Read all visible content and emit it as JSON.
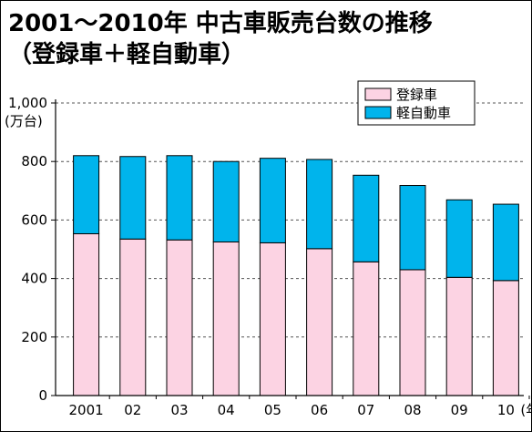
{
  "title_line1": "2001～2010年 中古車販売台数の推移",
  "title_line2": "（登録車＋軽自動車）",
  "colors": {
    "registered": "#fcd3e3",
    "kei": "#00b4ec",
    "grid": "#555555",
    "outline": "#000000"
  },
  "chart_data": {
    "type": "bar",
    "stacked": true,
    "categories": [
      "2001",
      "02",
      "03",
      "04",
      "05",
      "06",
      "07",
      "08",
      "09",
      "10"
    ],
    "x_unit": "(年)",
    "y_unit": "(万台)",
    "ylim": [
      0,
      1000
    ],
    "yticks": [
      0,
      200,
      400,
      600,
      800,
      1000
    ],
    "ytick_labels": [
      "0",
      "200",
      "400",
      "600",
      "800",
      "1,000"
    ],
    "grid": true,
    "legend_position": "top-right",
    "series": [
      {
        "name": "登録車",
        "color": "#fcd3e3",
        "values": [
          553,
          535,
          532,
          525,
          522,
          502,
          457,
          430,
          404,
          393
        ]
      },
      {
        "name": "軽自動車",
        "color": "#00b4ec",
        "values": [
          267,
          282,
          288,
          275,
          289,
          305,
          296,
          288,
          265,
          261
        ]
      }
    ]
  }
}
